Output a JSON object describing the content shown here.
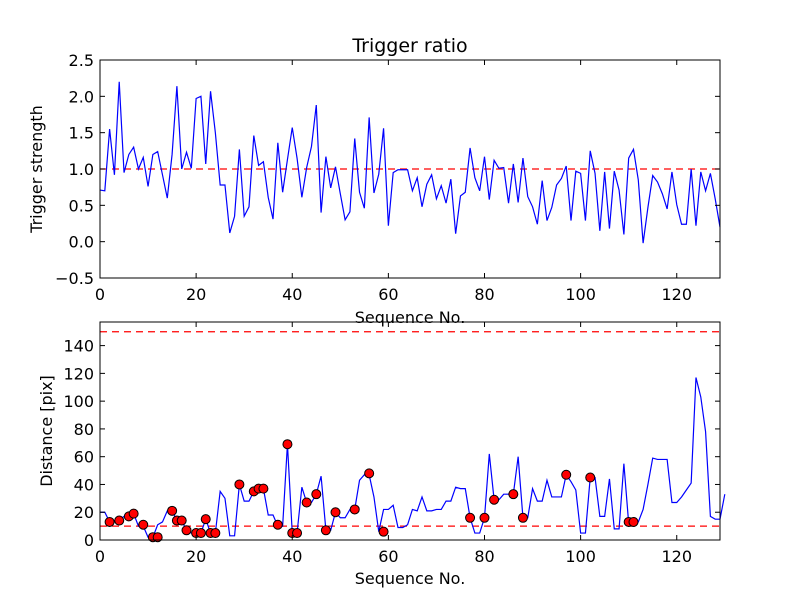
{
  "chart_data": [
    {
      "type": "line",
      "title": "Trigger ratio",
      "xlabel": "Sequence No.",
      "ylabel": "Trigger strength",
      "xlim": [
        0,
        129
      ],
      "ylim": [
        -0.5,
        2.5
      ],
      "xticks": [
        0,
        20,
        40,
        60,
        80,
        100,
        120
      ],
      "xtick_labels": [
        "0",
        "20",
        "40",
        "60",
        "80",
        "100",
        "120"
      ],
      "yticks": [
        -0.5,
        0.0,
        0.5,
        1.0,
        1.5,
        2.0,
        2.5
      ],
      "ytick_labels": [
        "−0.5",
        "0.0",
        "0.5",
        "1.0",
        "1.5",
        "2.0",
        "2.5"
      ],
      "series": [
        {
          "name": "trigger strength",
          "color": "#0000ff",
          "x_start": 0,
          "values": [
            0.71,
            0.7,
            1.55,
            0.92,
            2.2,
            0.95,
            1.2,
            1.3,
            1.0,
            1.16,
            0.76,
            1.2,
            1.24,
            0.92,
            0.6,
            1.2,
            2.14,
            1.0,
            1.23,
            1.01,
            1.97,
            2.0,
            1.07,
            2.07,
            1.5,
            0.78,
            0.78,
            0.12,
            0.35,
            1.27,
            0.35,
            0.48,
            1.46,
            1.05,
            1.1,
            0.61,
            0.31,
            1.36,
            0.68,
            1.13,
            1.57,
            1.15,
            0.61,
            1.02,
            1.31,
            1.88,
            0.4,
            1.17,
            0.74,
            1.03,
            0.66,
            0.3,
            0.41,
            1.42,
            0.68,
            0.46,
            1.71,
            0.67,
            0.93,
            1.56,
            0.22,
            0.95,
            0.99,
            0.99,
            0.99,
            0.7,
            0.88,
            0.48,
            0.79,
            0.92,
            0.59,
            0.77,
            0.53,
            0.86,
            0.11,
            0.63,
            0.68,
            1.29,
            0.88,
            0.7,
            1.17,
            0.58,
            1.12,
            1.01,
            1.02,
            0.53,
            1.07,
            0.54,
            1.15,
            0.62,
            0.48,
            0.24,
            0.84,
            0.29,
            0.47,
            0.78,
            0.87,
            1.04,
            0.29,
            0.97,
            0.94,
            0.29,
            1.25,
            0.94,
            0.15,
            0.96,
            0.18,
            0.97,
            0.71,
            0.1,
            1.15,
            1.27,
            0.85,
            -0.02,
            0.47,
            0.91,
            0.82,
            0.66,
            0.45,
            0.96,
            0.51,
            0.24,
            0.24,
            1.0,
            0.22,
            0.96,
            0.7,
            0.94,
            0.59,
            0.2
          ]
        }
      ],
      "reference_lines": [
        {
          "y": 1.0,
          "color": "#ff0000",
          "style": "dashed"
        }
      ]
    },
    {
      "type": "line",
      "title": "",
      "xlabel": "Sequence No.",
      "ylabel": "Distance [pix]",
      "xlim": [
        0,
        129
      ],
      "ylim": [
        0,
        157
      ],
      "xticks": [
        0,
        20,
        40,
        60,
        80,
        100,
        120
      ],
      "xtick_labels": [
        "0",
        "20",
        "40",
        "60",
        "80",
        "100",
        "120"
      ],
      "yticks": [
        0,
        20,
        40,
        60,
        80,
        100,
        120,
        140
      ],
      "ytick_labels": [
        "0",
        "20",
        "40",
        "60",
        "80",
        "100",
        "120",
        "140"
      ],
      "series": [
        {
          "name": "distance",
          "color": "#0000ff",
          "x_start": 0,
          "values": [
            20,
            20,
            13,
            14,
            14,
            17,
            17,
            19,
            10,
            10,
            2,
            2,
            11,
            13,
            21,
            21,
            14,
            14,
            7,
            5,
            5,
            5,
            15,
            5,
            5,
            35,
            30,
            3,
            3,
            40,
            28,
            28,
            35,
            37,
            37,
            18,
            18,
            10,
            10,
            69,
            5,
            5,
            38,
            27,
            27,
            33,
            46,
            7,
            7,
            20,
            16,
            16,
            22,
            22,
            43,
            47,
            47,
            31,
            6,
            22,
            22,
            25,
            9,
            9,
            11,
            22,
            21,
            31,
            21,
            21,
            22,
            22,
            28,
            28,
            38,
            37,
            37,
            16,
            5,
            5,
            16,
            62,
            29,
            29,
            33,
            33,
            33,
            60,
            16,
            16,
            37,
            28,
            28,
            43,
            31,
            31,
            31,
            47,
            42,
            36,
            5,
            5,
            45,
            45,
            17,
            17,
            44,
            8,
            8,
            55,
            12,
            12,
            13,
            22,
            40,
            59,
            58,
            58,
            58,
            27,
            27,
            31,
            36,
            41,
            117,
            103,
            78,
            17,
            15,
            15,
            33
          ]
        }
      ],
      "markers": {
        "color": "#ff0000",
        "points": [
          [
            2,
            13
          ],
          [
            4,
            14
          ],
          [
            6,
            17
          ],
          [
            7,
            19
          ],
          [
            9,
            11
          ],
          [
            11,
            2
          ],
          [
            12,
            2
          ],
          [
            15,
            21
          ],
          [
            16,
            14
          ],
          [
            17,
            14
          ],
          [
            18,
            7
          ],
          [
            20,
            5
          ],
          [
            21,
            5
          ],
          [
            22,
            15
          ],
          [
            23,
            5
          ],
          [
            24,
            5
          ],
          [
            29,
            40
          ],
          [
            32,
            35
          ],
          [
            33,
            37
          ],
          [
            34,
            37
          ],
          [
            37,
            11
          ],
          [
            39,
            69
          ],
          [
            40,
            5
          ],
          [
            41,
            5
          ],
          [
            43,
            27
          ],
          [
            45,
            33
          ],
          [
            47,
            7
          ],
          [
            49,
            20
          ],
          [
            53,
            22
          ],
          [
            56,
            48
          ],
          [
            59,
            6
          ],
          [
            77,
            16
          ],
          [
            80,
            16
          ],
          [
            82,
            29
          ],
          [
            86,
            33
          ],
          [
            88,
            16
          ],
          [
            97,
            47
          ],
          [
            102,
            45
          ],
          [
            110,
            13
          ],
          [
            111,
            13
          ]
        ]
      },
      "reference_lines": [
        {
          "y": 10,
          "color": "#ff0000",
          "style": "dashed"
        },
        {
          "y": 150,
          "color": "#ff0000",
          "style": "dashed"
        }
      ]
    }
  ]
}
